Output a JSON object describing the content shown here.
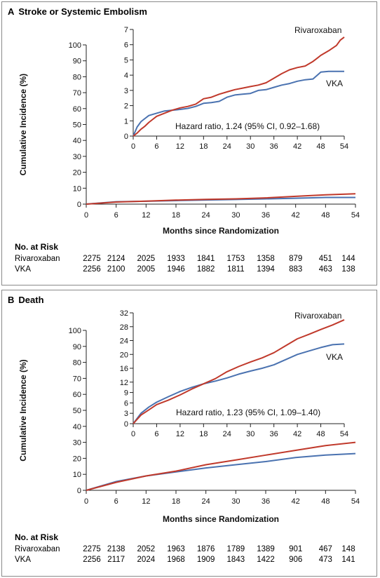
{
  "chart_data": [
    {
      "type": "line",
      "panel_letter": "A",
      "title": "Stroke or Systemic Embolism",
      "xlabel": "Months since Randomization",
      "ylabel": "Cumulative Incidence (%)",
      "xlim": [
        0,
        54
      ],
      "ylim": [
        0,
        100
      ],
      "xticks": [
        0,
        6,
        12,
        18,
        24,
        30,
        36,
        42,
        48,
        54
      ],
      "yticks": [
        0,
        10,
        20,
        30,
        40,
        50,
        60,
        70,
        80,
        90,
        100
      ],
      "series": [
        {
          "name": "Rivaroxaban",
          "color": "#c0392b",
          "x": [
            0,
            6,
            12,
            18,
            24,
            30,
            36,
            42,
            48,
            54
          ],
          "y": [
            0,
            1.3,
            1.9,
            2.5,
            3.0,
            3.3,
            3.9,
            4.9,
            5.8,
            6.5
          ]
        },
        {
          "name": "VKA",
          "color": "#4a72b0",
          "x": [
            0,
            6,
            12,
            18,
            24,
            30,
            36,
            42,
            48,
            54
          ],
          "y": [
            0,
            1.5,
            1.8,
            2.2,
            2.6,
            2.9,
            3.3,
            3.7,
            4.2,
            4.2
          ]
        }
      ],
      "inset": {
        "xlim": [
          0,
          54
        ],
        "ylim": [
          0,
          7
        ],
        "xticks": [
          0,
          6,
          12,
          18,
          24,
          30,
          36,
          42,
          48,
          54
        ],
        "yticks": [
          0,
          1,
          2,
          3,
          4,
          5,
          6,
          7
        ],
        "annotation": "Hazard ratio, 1.24 (95% CI, 0.92–1.68)",
        "series": [
          {
            "name": "Rivaroxaban",
            "color": "#c0392b",
            "x": [
              0,
              1,
              2,
              3,
              4,
              5,
              6,
              8,
              10,
              12,
              14,
              16,
              18,
              20,
              22,
              24,
              26,
              28,
              30,
              32,
              34,
              36,
              38,
              40,
              42,
              44,
              46,
              47,
              48,
              50,
              52,
              53,
              54
            ],
            "y": [
              0,
              0.2,
              0.45,
              0.65,
              0.9,
              1.1,
              1.3,
              1.5,
              1.7,
              1.85,
              1.95,
              2.1,
              2.45,
              2.55,
              2.75,
              2.9,
              3.05,
              3.15,
              3.25,
              3.35,
              3.5,
              3.8,
              4.1,
              4.35,
              4.5,
              4.6,
              4.9,
              5.1,
              5.3,
              5.6,
              5.95,
              6.3,
              6.5
            ]
          },
          {
            "name": "VKA",
            "color": "#4a72b0",
            "x": [
              0,
              1,
              2,
              3,
              4,
              6,
              8,
              10,
              12,
              14,
              16,
              18,
              20,
              22,
              24,
              26,
              28,
              30,
              32,
              34,
              36,
              38,
              40,
              42,
              44,
              46,
              48,
              50,
              52,
              54
            ],
            "y": [
              0,
              0.6,
              0.95,
              1.15,
              1.35,
              1.5,
              1.65,
              1.7,
              1.75,
              1.82,
              1.95,
              2.15,
              2.2,
              2.28,
              2.55,
              2.7,
              2.75,
              2.8,
              3.0,
              3.05,
              3.2,
              3.35,
              3.45,
              3.6,
              3.7,
              3.75,
              4.2,
              4.25,
              4.25,
              4.25
            ]
          }
        ]
      },
      "at_risk": {
        "heading": "No. at Risk",
        "rows": [
          {
            "name": "Rivaroxaban",
            "values": [
              "2275",
              "2124",
              "2025",
              "1933",
              "1841",
              "1753",
              "1358",
              "879",
              "451",
              "144"
            ]
          },
          {
            "name": "VKA",
            "values": [
              "2256",
              "2100",
              "2005",
              "1946",
              "1882",
              "1811",
              "1394",
              "883",
              "463",
              "138"
            ]
          }
        ]
      }
    },
    {
      "type": "line",
      "panel_letter": "B",
      "title": "Death",
      "xlabel": "Months since Randomization",
      "ylabel": "Cumulative Incidence (%)",
      "xlim": [
        0,
        54
      ],
      "ylim": [
        0,
        100
      ],
      "xticks": [
        0,
        6,
        12,
        18,
        24,
        30,
        36,
        42,
        48,
        54
      ],
      "yticks": [
        0,
        10,
        20,
        30,
        40,
        50,
        60,
        70,
        80,
        90,
        100
      ],
      "series": [
        {
          "name": "Rivaroxaban",
          "color": "#c0392b",
          "x": [
            0,
            6,
            12,
            18,
            24,
            30,
            36,
            42,
            48,
            54
          ],
          "y": [
            0,
            5,
            9,
            12,
            16,
            19,
            22,
            25,
            28,
            30
          ]
        },
        {
          "name": "VKA",
          "color": "#4a72b0",
          "x": [
            0,
            6,
            12,
            18,
            24,
            30,
            36,
            42,
            48,
            54
          ],
          "y": [
            0,
            5.5,
            9,
            11.5,
            14,
            16,
            18,
            20.5,
            22,
            23
          ]
        }
      ],
      "inset": {
        "xlim": [
          0,
          54
        ],
        "ylim": [
          0,
          32
        ],
        "xticks": [
          0,
          6,
          12,
          18,
          24,
          30,
          36,
          42,
          48,
          54
        ],
        "yticks": [
          0,
          3,
          6,
          9,
          12,
          16,
          20,
          24,
          28,
          32
        ],
        "annotation": "Hazard ratio, 1.23 (95% CI, 1.09–1.40)",
        "series": [
          {
            "name": "Rivaroxaban",
            "color": "#c0392b",
            "x": [
              0,
              2,
              4,
              6,
              9,
              12,
              15,
              18,
              21,
              24,
              27,
              30,
              33,
              36,
              39,
              42,
              45,
              48,
              51,
              54
            ],
            "y": [
              0,
              2.5,
              4,
              5.5,
              6.8,
              8.3,
              10,
              11.5,
              13,
              15,
              16.5,
              17.8,
              19,
              20.5,
              22.5,
              24.5,
              25.8,
              27.2,
              28.5,
              30
            ]
          },
          {
            "name": "VKA",
            "color": "#4a72b0",
            "x": [
              0,
              2,
              4,
              6,
              9,
              12,
              15,
              18,
              21,
              24,
              27,
              30,
              33,
              36,
              39,
              42,
              45,
              48,
              51,
              54
            ],
            "y": [
              0,
              3,
              4.8,
              6.2,
              7.8,
              9.3,
              10.5,
              11.5,
              12.3,
              13.2,
              14.3,
              15.2,
              16,
              17,
              18.5,
              20,
              21,
              22,
              22.8,
              23
            ]
          }
        ]
      },
      "at_risk": {
        "heading": "No. at Risk",
        "rows": [
          {
            "name": "Rivaroxaban",
            "values": [
              "2275",
              "2138",
              "2052",
              "1963",
              "1876",
              "1789",
              "1389",
              "901",
              "467",
              "148"
            ]
          },
          {
            "name": "VKA",
            "values": [
              "2256",
              "2117",
              "2024",
              "1968",
              "1909",
              "1843",
              "1422",
              "906",
              "473",
              "141"
            ]
          }
        ]
      }
    }
  ]
}
